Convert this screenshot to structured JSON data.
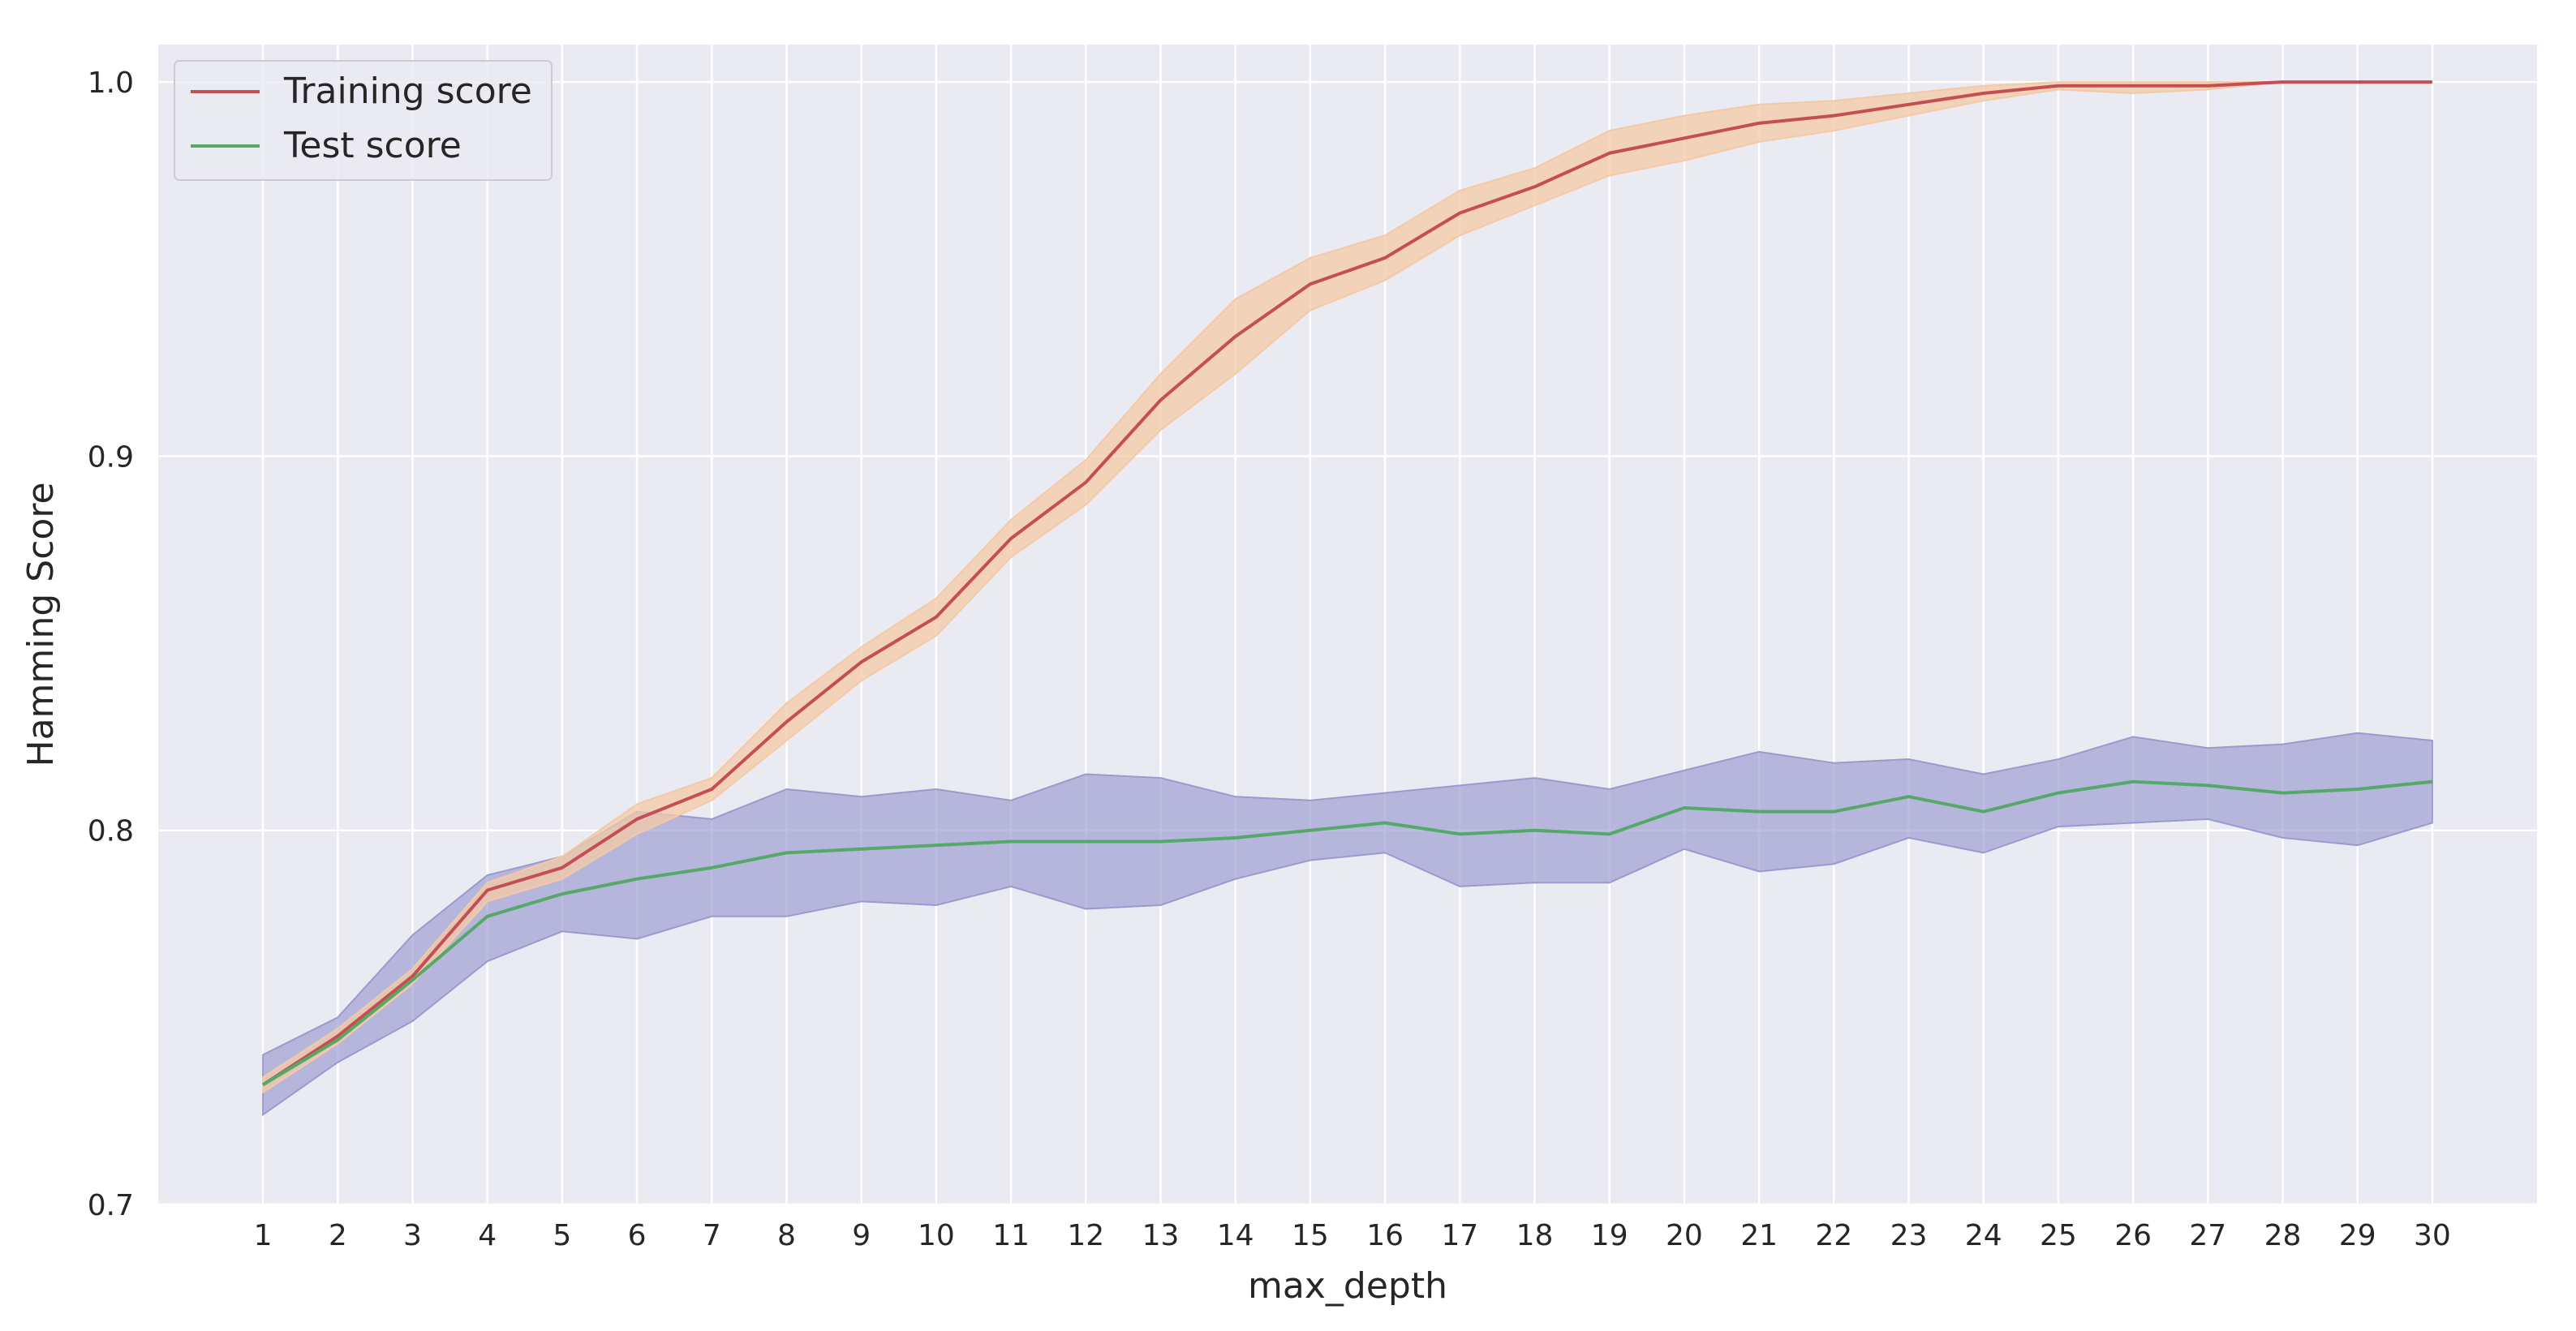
{
  "chart_data": {
    "type": "line",
    "title": "",
    "xlabel": "max_depth",
    "ylabel": "Hamming Score",
    "x": [
      1,
      2,
      3,
      4,
      5,
      6,
      7,
      8,
      9,
      10,
      11,
      12,
      13,
      14,
      15,
      16,
      17,
      18,
      19,
      20,
      21,
      22,
      23,
      24,
      25,
      26,
      27,
      28,
      29,
      30
    ],
    "xlim": [
      -0.4,
      31.4
    ],
    "ylim": [
      0.7,
      1.01
    ],
    "yticks": [
      0.7,
      0.8,
      0.9,
      1.0
    ],
    "ytick_labels": [
      "0.7",
      "0.8",
      "0.9",
      "1.0"
    ],
    "grid": true,
    "background": "#eaeaf2",
    "legend_position": "top-left",
    "series": [
      {
        "name": "Training score",
        "color": "#c44e52",
        "band_color": "#f4c9a6",
        "values": [
          0.732,
          0.745,
          0.761,
          0.784,
          0.79,
          0.803,
          0.811,
          0.829,
          0.845,
          0.857,
          0.878,
          0.893,
          0.915,
          0.932,
          0.946,
          0.953,
          0.965,
          0.972,
          0.981,
          0.985,
          0.989,
          0.991,
          0.994,
          0.997,
          0.999,
          0.999,
          0.999,
          1.0,
          1.0,
          1.0
        ],
        "upper": [
          0.734,
          0.747,
          0.763,
          0.786,
          0.793,
          0.807,
          0.814,
          0.834,
          0.849,
          0.862,
          0.883,
          0.899,
          0.922,
          0.942,
          0.953,
          0.959,
          0.971,
          0.977,
          0.987,
          0.991,
          0.994,
          0.995,
          0.997,
          0.999,
          1.0,
          1.0,
          1.0,
          1.0,
          1.0,
          1.0
        ],
        "lower": [
          0.73,
          0.743,
          0.759,
          0.781,
          0.787,
          0.799,
          0.808,
          0.824,
          0.84,
          0.852,
          0.873,
          0.887,
          0.907,
          0.922,
          0.939,
          0.947,
          0.959,
          0.967,
          0.975,
          0.979,
          0.984,
          0.987,
          0.991,
          0.995,
          0.998,
          0.997,
          0.998,
          1.0,
          1.0,
          1.0
        ]
      },
      {
        "name": "Test score",
        "color": "#55a868",
        "band_color": "#9a9ad0",
        "values": [
          0.732,
          0.744,
          0.76,
          0.777,
          0.783,
          0.787,
          0.79,
          0.794,
          0.795,
          0.796,
          0.797,
          0.797,
          0.797,
          0.798,
          0.8,
          0.802,
          0.799,
          0.8,
          0.799,
          0.806,
          0.805,
          0.805,
          0.809,
          0.805,
          0.81,
          0.813,
          0.812,
          0.81,
          0.811,
          0.813
        ],
        "upper": [
          0.74,
          0.75,
          0.772,
          0.788,
          0.793,
          0.805,
          0.803,
          0.811,
          0.809,
          0.811,
          0.808,
          0.815,
          0.814,
          0.809,
          0.808,
          0.81,
          0.812,
          0.814,
          0.811,
          0.816,
          0.821,
          0.818,
          0.819,
          0.815,
          0.819,
          0.825,
          0.822,
          0.823,
          0.826,
          0.824
        ],
        "lower": [
          0.724,
          0.738,
          0.749,
          0.765,
          0.773,
          0.771,
          0.777,
          0.777,
          0.781,
          0.78,
          0.785,
          0.779,
          0.78,
          0.787,
          0.792,
          0.794,
          0.785,
          0.786,
          0.786,
          0.795,
          0.789,
          0.791,
          0.798,
          0.794,
          0.801,
          0.802,
          0.803,
          0.798,
          0.796,
          0.802
        ]
      }
    ]
  }
}
